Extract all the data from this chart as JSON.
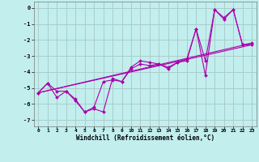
{
  "xlabel": "Windchill (Refroidissement éolien,°C)",
  "background_color": "#c2eeee",
  "grid_color": "#aacccc",
  "line_color": "#aa00aa",
  "xlim": [
    -0.5,
    23.5
  ],
  "ylim": [
    -7.4,
    0.4
  ],
  "xticks": [
    0,
    1,
    2,
    3,
    4,
    5,
    6,
    7,
    8,
    9,
    10,
    11,
    12,
    13,
    14,
    15,
    16,
    17,
    18,
    19,
    20,
    21,
    22,
    23
  ],
  "yticks": [
    0,
    -1,
    -2,
    -3,
    -4,
    -5,
    -6,
    -7
  ],
  "series1_x": [
    0,
    1,
    2,
    3,
    4,
    5,
    6,
    7,
    8,
    9,
    10,
    11,
    12,
    13,
    14,
    15,
    16,
    17,
    18,
    19,
    20,
    21,
    22,
    23
  ],
  "series1_y": [
    -5.3,
    -4.7,
    -5.6,
    -5.2,
    -5.8,
    -6.5,
    -6.3,
    -6.5,
    -4.4,
    -4.6,
    -3.7,
    -3.3,
    -3.4,
    -3.5,
    -3.7,
    -3.4,
    -3.3,
    -1.3,
    -3.3,
    -0.1,
    -0.6,
    -0.1,
    -2.3,
    -2.2
  ],
  "series2_x": [
    0,
    1,
    2,
    3,
    4,
    5,
    6,
    7,
    8,
    9,
    10,
    11,
    12,
    13,
    14,
    15,
    16,
    17,
    18,
    19,
    20,
    21,
    22,
    23
  ],
  "series2_y": [
    -5.3,
    -4.7,
    -5.2,
    -5.2,
    -5.7,
    -6.5,
    -6.2,
    -4.6,
    -4.5,
    -4.6,
    -3.8,
    -3.5,
    -3.6,
    -3.5,
    -3.8,
    -3.4,
    -3.2,
    -1.3,
    -4.2,
    -0.1,
    -0.7,
    -0.1,
    -2.3,
    -2.3
  ],
  "trend_x": [
    0,
    23
  ],
  "trend_y": [
    -5.3,
    -2.2
  ],
  "trend2_x": [
    0,
    23
  ],
  "trend2_y": [
    -5.3,
    -2.3
  ]
}
